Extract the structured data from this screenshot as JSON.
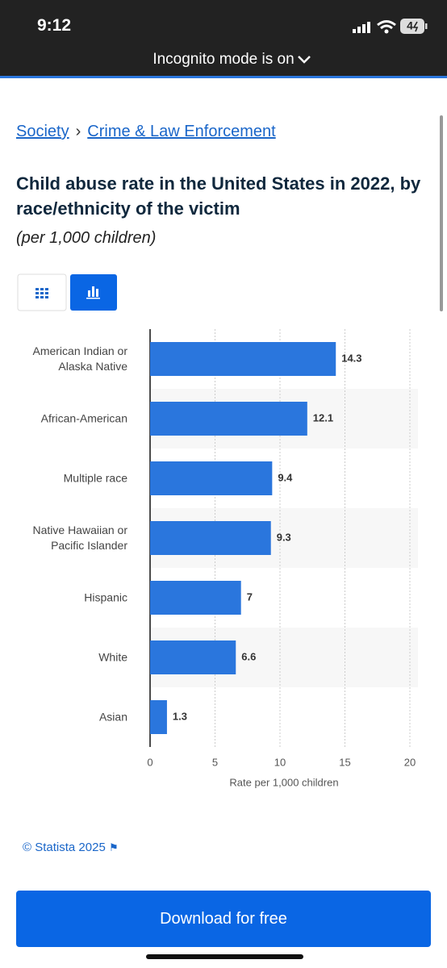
{
  "status_bar": {
    "time": "9:12",
    "battery": "4",
    "banner": "Incognito mode is on"
  },
  "breadcrumb": {
    "items": [
      "Society",
      "Crime & Law Enforcement"
    ],
    "separator": "›"
  },
  "chart_data": {
    "type": "bar",
    "orientation": "horizontal",
    "title": "Child abuse rate in the United States in 2022, by race/ethnicity of the victim",
    "subtitle": "(per 1,000 children)",
    "categories": [
      "American Indian or Alaska Native",
      "African-American",
      "Multiple race",
      "Native Hawaiian or Pacific Islander",
      "Hispanic",
      "White",
      "Asian"
    ],
    "values": [
      14.3,
      12.1,
      9.4,
      9.3,
      7,
      6.6,
      1.3
    ],
    "color": "#2a76dd",
    "xlabel": "Rate per 1,000 children",
    "xlim": [
      0,
      20
    ],
    "xticks": [
      0,
      5,
      10,
      15,
      20
    ],
    "grid": true
  },
  "footer": {
    "source": "© Statista 2025"
  },
  "button": {
    "label": "Download for free"
  }
}
